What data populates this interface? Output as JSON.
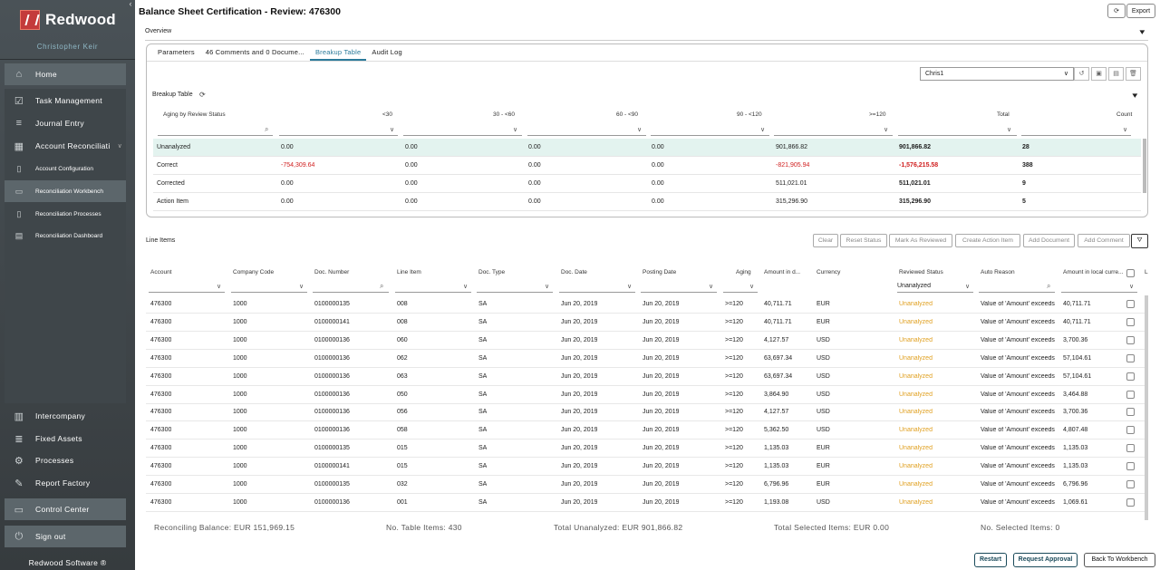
{
  "sidebar": {
    "logo": "Redwood",
    "user": "Christopher Keir",
    "brand": "Redwood Software ®",
    "home": "Home",
    "items": [
      "Task Management",
      "Journal Entry",
      "Account Reconciliati"
    ],
    "sub": [
      "Account Configuration",
      "Reconciliation Workbench",
      "Reconciliation Processes",
      "Reconciliation Dashboard"
    ],
    "lower": [
      "Intercompany",
      "Fixed Assets",
      "Processes",
      "Report Factory"
    ],
    "control": "Control Center",
    "signout": "Sign out"
  },
  "header": {
    "title": "Balance Sheet Certification - Review: 476300",
    "export": "Export",
    "overview": "Overview"
  },
  "tabs": [
    "Parameters",
    "46 Comments and 0 Docume...",
    "Breakup Table",
    "Audit Log"
  ],
  "breakup": {
    "user": "Chris1",
    "label": "Breakup Table",
    "headers": [
      "Aging by Review Status",
      "<30",
      "30 - <60",
      "60 - <90",
      "90 - <120",
      ">=120",
      "Total",
      "Count"
    ],
    "rows": [
      {
        "s": "Unanalyzed",
        "v": [
          "0.00",
          "0.00",
          "0.00",
          "0.00",
          "901,866.82",
          "901,866.82",
          "28"
        ]
      },
      {
        "s": "Correct",
        "v": [
          "-754,309.64",
          "0.00",
          "0.00",
          "0.00",
          "-821,905.94",
          "-1,576,215.58",
          "388"
        ]
      },
      {
        "s": "Corrected",
        "v": [
          "0.00",
          "0.00",
          "0.00",
          "0.00",
          "511,021.01",
          "511,021.01",
          "9"
        ]
      },
      {
        "s": "Action Item",
        "v": [
          "0.00",
          "0.00",
          "0.00",
          "0.00",
          "315,296.90",
          "315,296.90",
          "5"
        ]
      }
    ]
  },
  "lineitems": {
    "label": "Line Items",
    "actions": [
      "Clear",
      "Reset Status",
      "Mark As Reviewed",
      "Create Action Item",
      "Add Document",
      "Add Comment"
    ],
    "headers": [
      "Account",
      "Company Code",
      "Doc. Number",
      "Line Item",
      "Doc. Type",
      "Doc. Date",
      "Posting Date",
      "Aging",
      "Amount in d...",
      "Currency",
      "Reviewed Status",
      "Auto Reason",
      "Amount in local curre...",
      "L"
    ],
    "filter_status": "Unanalyzed",
    "rows": [
      [
        "476300",
        "1000",
        "0100000135",
        "008",
        "SA",
        "Jun 20, 2019",
        "Jun 20, 2019",
        ">=120",
        "40,711.71",
        "EUR",
        "Unanalyzed",
        "Value of 'Amount' exceeds",
        "40,711.71"
      ],
      [
        "476300",
        "1000",
        "0100000141",
        "008",
        "SA",
        "Jun 20, 2019",
        "Jun 20, 2019",
        ">=120",
        "40,711.71",
        "EUR",
        "Unanalyzed",
        "Value of 'Amount' exceeds",
        "40,711.71"
      ],
      [
        "476300",
        "1000",
        "0100000136",
        "060",
        "SA",
        "Jun 20, 2019",
        "Jun 20, 2019",
        ">=120",
        "4,127.57",
        "USD",
        "Unanalyzed",
        "Value of 'Amount' exceeds",
        "3,700.36"
      ],
      [
        "476300",
        "1000",
        "0100000136",
        "062",
        "SA",
        "Jun 20, 2019",
        "Jun 20, 2019",
        ">=120",
        "63,697.34",
        "USD",
        "Unanalyzed",
        "Value of 'Amount' exceeds",
        "57,104.61"
      ],
      [
        "476300",
        "1000",
        "0100000136",
        "063",
        "SA",
        "Jun 20, 2019",
        "Jun 20, 2019",
        ">=120",
        "63,697.34",
        "USD",
        "Unanalyzed",
        "Value of 'Amount' exceeds",
        "57,104.61"
      ],
      [
        "476300",
        "1000",
        "0100000136",
        "050",
        "SA",
        "Jun 20, 2019",
        "Jun 20, 2019",
        ">=120",
        "3,864.90",
        "USD",
        "Unanalyzed",
        "Value of 'Amount' exceeds",
        "3,464.88"
      ],
      [
        "476300",
        "1000",
        "0100000136",
        "056",
        "SA",
        "Jun 20, 2019",
        "Jun 20, 2019",
        ">=120",
        "4,127.57",
        "USD",
        "Unanalyzed",
        "Value of 'Amount' exceeds",
        "3,700.36"
      ],
      [
        "476300",
        "1000",
        "0100000136",
        "058",
        "SA",
        "Jun 20, 2019",
        "Jun 20, 2019",
        ">=120",
        "5,362.50",
        "USD",
        "Unanalyzed",
        "Value of 'Amount' exceeds",
        "4,807.48"
      ],
      [
        "476300",
        "1000",
        "0100000135",
        "015",
        "SA",
        "Jun 20, 2019",
        "Jun 20, 2019",
        ">=120",
        "1,135.03",
        "EUR",
        "Unanalyzed",
        "Value of 'Amount' exceeds",
        "1,135.03"
      ],
      [
        "476300",
        "1000",
        "0100000141",
        "015",
        "SA",
        "Jun 20, 2019",
        "Jun 20, 2019",
        ">=120",
        "1,135.03",
        "EUR",
        "Unanalyzed",
        "Value of 'Amount' exceeds",
        "1,135.03"
      ],
      [
        "476300",
        "1000",
        "0100000135",
        "032",
        "SA",
        "Jun 20, 2019",
        "Jun 20, 2019",
        ">=120",
        "6,796.96",
        "EUR",
        "Unanalyzed",
        "Value of 'Amount' exceeds",
        "6,796.96"
      ],
      [
        "476300",
        "1000",
        "0100000136",
        "001",
        "SA",
        "Jun 20, 2019",
        "Jun 20, 2019",
        ">=120",
        "1,193.08",
        "USD",
        "Unanalyzed",
        "Value of 'Amount' exceeds",
        "1,069.61"
      ]
    ]
  },
  "footer": {
    "balance": "Reconciling Balance:  EUR 151,969.15",
    "items": "No. Table Items:  430",
    "unanalyzed": "Total Unanalyzed:  EUR 901,866.82",
    "selected_total": "Total Selected Items:  EUR 0.00",
    "selected": "No. Selected Items:  0"
  },
  "buttons": {
    "restart": "Restart",
    "request": "Request Approval",
    "back": "Back To Workbench"
  },
  "colors": {
    "accent": "#2a7a9a",
    "negative": "#d02020",
    "unanalyzed": "#e0a020",
    "highlight": "#e3f3ef"
  }
}
